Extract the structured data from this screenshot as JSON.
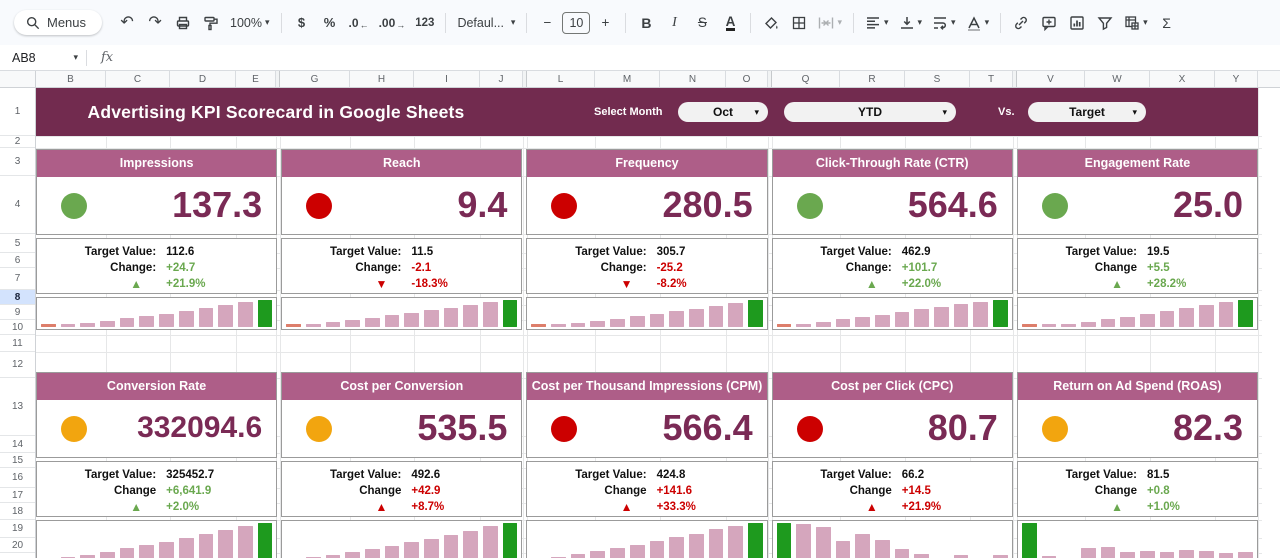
{
  "colors": {
    "banner": "#722B4F",
    "card_header": "#AE5E88",
    "kpi_value": "#7A2A55",
    "status_green": "#6AA84F",
    "status_red": "#CC0000",
    "status_yellow": "#F2A50F",
    "spark_pink": "#D5A6BD",
    "spark_green": "#1E9A1E",
    "spark_red": "#DD7E6B"
  },
  "toolbar": {
    "menus": "Menus",
    "zoom": "100%",
    "currency": "$",
    "percent": "%",
    "decimal_decrease": ".0",
    "decimal_increase": ".00",
    "format_number": "123",
    "font_name": "Defaul...",
    "font_size": "10",
    "minus": "−",
    "plus": "+",
    "bold": "B",
    "italic": "I",
    "strikethrough": "S",
    "text_color": "A",
    "functions": "Σ"
  },
  "icons": {
    "undo": "↶",
    "redo": "↷",
    "caret": "▾",
    "arrow_left": "←",
    "arrow_right": "→",
    "merge_left": "⇥",
    "merge_right": "⇤",
    "up_triangle": "▲",
    "down_triangle": "▼"
  },
  "formula_bar": {
    "cell_ref": "AB8",
    "fx_label": "fx"
  },
  "grid": {
    "columns": [
      "B",
      "C",
      "D",
      "E",
      "G",
      "H",
      "I",
      "J",
      "L",
      "M",
      "N",
      "O",
      "Q",
      "R",
      "S",
      "T",
      "V",
      "W",
      "X",
      "Y"
    ],
    "rows": [
      "1",
      "2",
      "3",
      "4",
      "5",
      "6",
      "7",
      "8",
      "9",
      "10",
      "11",
      "12",
      "13",
      "14",
      "15",
      "16",
      "17",
      "18",
      "19",
      "20"
    ],
    "selected_row": "8"
  },
  "banner": {
    "title": "Advertising KPI Scorecard in Google Sheets",
    "select_month_label": "Select Month",
    "month_value": "Oct",
    "period_value": "YTD",
    "vs_label": "Vs.",
    "compare_value": "Target"
  },
  "cards": [
    {
      "title": "Impressions",
      "status": "green",
      "value": "137.3",
      "target_label": "Target Value:",
      "target": "112.6",
      "change_label": "Change:",
      "change": "+24.7",
      "change_color": "green",
      "arrow": "up",
      "arrow_color": "green",
      "pct": "+21.9%",
      "pct_color": "green",
      "spark": [
        [
          5,
          "r"
        ],
        [
          10,
          "p"
        ],
        [
          16,
          "p"
        ],
        [
          24,
          "p"
        ],
        [
          32,
          "p"
        ],
        [
          41,
          "p"
        ],
        [
          50,
          "p"
        ],
        [
          60,
          "p"
        ],
        [
          70,
          "p"
        ],
        [
          81,
          "p"
        ],
        [
          92,
          "p"
        ],
        [
          100,
          "g"
        ]
      ]
    },
    {
      "title": "Reach",
      "status": "red",
      "value": "9.4",
      "target_label": "Target Value:",
      "target": "11.5",
      "change_label": "Change:",
      "change": "-2.1",
      "change_color": "red",
      "arrow": "down",
      "arrow_color": "red",
      "pct": "-18.3%",
      "pct_color": "red",
      "spark": [
        [
          5,
          "r"
        ],
        [
          12,
          "p"
        ],
        [
          18,
          "p"
        ],
        [
          26,
          "p"
        ],
        [
          34,
          "p"
        ],
        [
          43,
          "p"
        ],
        [
          52,
          "p"
        ],
        [
          62,
          "p"
        ],
        [
          72,
          "p"
        ],
        [
          83,
          "p"
        ],
        [
          93,
          "p"
        ],
        [
          100,
          "g"
        ]
      ]
    },
    {
      "title": "Frequency",
      "status": "red",
      "value": "280.5",
      "target_label": "Target Value:",
      "target": "305.7",
      "change_label": "Change:",
      "change": "-25.2",
      "change_color": "red",
      "arrow": "down",
      "arrow_color": "red",
      "pct": "-8.2%",
      "pct_color": "red",
      "spark": [
        [
          5,
          "r"
        ],
        [
          9,
          "p"
        ],
        [
          15,
          "p"
        ],
        [
          22,
          "p"
        ],
        [
          30,
          "p"
        ],
        [
          39,
          "p"
        ],
        [
          48,
          "p"
        ],
        [
          58,
          "p"
        ],
        [
          68,
          "p"
        ],
        [
          79,
          "p"
        ],
        [
          90,
          "p"
        ],
        [
          100,
          "g"
        ]
      ]
    },
    {
      "title": "Click-Through Rate (CTR)",
      "status": "green",
      "value": "564.6",
      "target_label": "Target Value:",
      "target": "462.9",
      "change_label": "Change:",
      "change": "+101.7",
      "change_color": "green",
      "arrow": "up",
      "arrow_color": "green",
      "pct": "+22.0%",
      "pct_color": "green",
      "spark": [
        [
          6,
          "r"
        ],
        [
          13,
          "p"
        ],
        [
          20,
          "p"
        ],
        [
          28,
          "p"
        ],
        [
          37,
          "p"
        ],
        [
          46,
          "p"
        ],
        [
          55,
          "p"
        ],
        [
          65,
          "p"
        ],
        [
          75,
          "p"
        ],
        [
          85,
          "p"
        ],
        [
          94,
          "p"
        ],
        [
          100,
          "g"
        ]
      ]
    },
    {
      "title": "Engagement Rate",
      "status": "green",
      "value": "25.0",
      "target_label": "Target Value:",
      "target": "19.5",
      "change_label": "Change",
      "change": "+5.5",
      "change_color": "green",
      "arrow": "up",
      "arrow_color": "green",
      "pct": "+28.2%",
      "pct_color": "green",
      "spark": [
        [
          5,
          "r"
        ],
        [
          8,
          "p"
        ],
        [
          12,
          "p"
        ],
        [
          20,
          "p"
        ],
        [
          28,
          "p"
        ],
        [
          38,
          "p"
        ],
        [
          48,
          "p"
        ],
        [
          58,
          "p"
        ],
        [
          69,
          "p"
        ],
        [
          80,
          "p"
        ],
        [
          91,
          "p"
        ],
        [
          100,
          "g"
        ]
      ]
    },
    {
      "title": "Conversion Rate",
      "status": "yellow",
      "value": "332094.6",
      "target_label": "Target Value:",
      "target": "325452.7",
      "change_label": "Change",
      "change": "+6,641.9",
      "change_color": "green",
      "arrow": "up",
      "arrow_color": "green",
      "pct": "+2.0%",
      "pct_color": "green",
      "spark": [
        [
          5,
          "r"
        ],
        [
          11,
          "p"
        ],
        [
          17,
          "p"
        ],
        [
          25,
          "p"
        ],
        [
          33,
          "p"
        ],
        [
          42,
          "p"
        ],
        [
          51,
          "p"
        ],
        [
          61,
          "p"
        ],
        [
          71,
          "p"
        ],
        [
          82,
          "p"
        ],
        [
          92,
          "p"
        ],
        [
          100,
          "g"
        ]
      ]
    },
    {
      "title": "Cost per Conversion",
      "status": "yellow",
      "value": "535.5",
      "target_label": "Target Value:",
      "target": "492.6",
      "change_label": "Change",
      "change": "+42.9",
      "change_color": "red",
      "arrow": "up",
      "arrow_color": "red",
      "pct": "+8.7%",
      "pct_color": "red",
      "spark": [
        [
          5,
          "r"
        ],
        [
          10,
          "p"
        ],
        [
          16,
          "p"
        ],
        [
          23,
          "p"
        ],
        [
          31,
          "p"
        ],
        [
          40,
          "p"
        ],
        [
          49,
          "p"
        ],
        [
          59,
          "p"
        ],
        [
          69,
          "p"
        ],
        [
          80,
          "p"
        ],
        [
          91,
          "p"
        ],
        [
          100,
          "g"
        ]
      ]
    },
    {
      "title": "Cost per Thousand Impressions (CPM)",
      "status": "red",
      "value": "566.4",
      "target_label": "Target Value:",
      "target": "424.8",
      "change_label": "Change",
      "change": "+141.6",
      "change_color": "red",
      "arrow": "up",
      "arrow_color": "red",
      "pct": "+33.3%",
      "pct_color": "red",
      "spark": [
        [
          5,
          "r"
        ],
        [
          11,
          "p"
        ],
        [
          18,
          "p"
        ],
        [
          26,
          "p"
        ],
        [
          34,
          "p"
        ],
        [
          43,
          "p"
        ],
        [
          52,
          "p"
        ],
        [
          62,
          "p"
        ],
        [
          72,
          "p"
        ],
        [
          83,
          "p"
        ],
        [
          93,
          "p"
        ],
        [
          100,
          "g"
        ]
      ]
    },
    {
      "title": "Cost per Click (CPC)",
      "status": "red",
      "value": "80.7",
      "target_label": "Target Value:",
      "target": "66.2",
      "change_label": "Change",
      "change": "+14.5",
      "change_color": "red",
      "arrow": "up",
      "arrow_color": "red",
      "pct": "+21.9%",
      "pct_color": "red",
      "spark": [
        [
          100,
          "g"
        ],
        [
          97,
          "p"
        ],
        [
          90,
          "p"
        ],
        [
          52,
          "p"
        ],
        [
          70,
          "p"
        ],
        [
          55,
          "p"
        ],
        [
          32,
          "p"
        ],
        [
          18,
          "p"
        ],
        [
          8,
          "p"
        ],
        [
          15,
          "p"
        ],
        [
          5,
          "r"
        ],
        [
          16,
          "p"
        ]
      ]
    },
    {
      "title": "Return on Ad Spend (ROAS)",
      "status": "yellow",
      "value": "82.3",
      "target_label": "Target Value:",
      "target": "81.5",
      "change_label": "Change",
      "change": "+0.8",
      "change_color": "green",
      "arrow": "up",
      "arrow_color": "green",
      "pct": "+1.0%",
      "pct_color": "green",
      "spark": [
        [
          100,
          "g"
        ],
        [
          14,
          "p"
        ],
        [
          5,
          "r"
        ],
        [
          33,
          "p"
        ],
        [
          36,
          "p"
        ],
        [
          24,
          "p"
        ],
        [
          27,
          "p"
        ],
        [
          25,
          "p"
        ],
        [
          29,
          "p"
        ],
        [
          27,
          "p"
        ],
        [
          20,
          "p"
        ],
        [
          24,
          "p"
        ]
      ]
    }
  ]
}
